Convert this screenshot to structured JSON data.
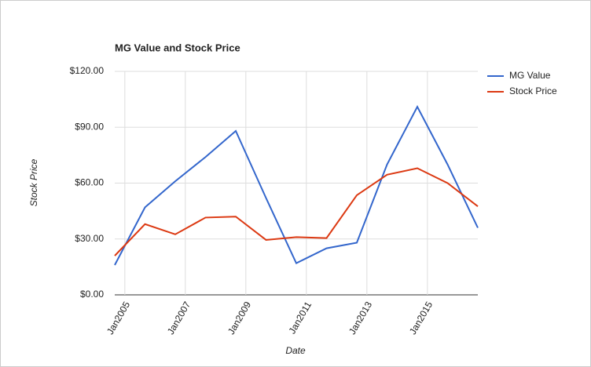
{
  "chart_data": {
    "type": "line",
    "title": "MG Value and Stock Price",
    "x_label": "Date",
    "y_label": "Stock Price",
    "x": [
      "2004-09",
      "2005-09",
      "2006-09",
      "2007-09",
      "2008-09",
      "2009-09",
      "2010-09",
      "2011-09",
      "2012-09",
      "2013-09",
      "2014-09",
      "2015-09",
      "2016-09"
    ],
    "xlim": [
      "2004-09",
      "2016-09"
    ],
    "xticks": [
      {
        "value": "2005-01",
        "label": "Jan2005"
      },
      {
        "value": "2007-01",
        "label": "Jan2007"
      },
      {
        "value": "2009-01",
        "label": "Jan2009"
      },
      {
        "value": "2011-01",
        "label": "Jan2011"
      },
      {
        "value": "2013-01",
        "label": "Jan2013"
      },
      {
        "value": "2015-01",
        "label": "Jan2015"
      }
    ],
    "ylim": [
      0,
      120
    ],
    "yticks": [
      {
        "value": 0,
        "label": "$0.00"
      },
      {
        "value": 30,
        "label": "$30.00"
      },
      {
        "value": 60,
        "label": "$60.00"
      },
      {
        "value": 90,
        "label": "$90.00"
      },
      {
        "value": 120,
        "label": "$120.00"
      }
    ],
    "grid": true,
    "legend": "right",
    "series": [
      {
        "name": "MG Value",
        "color": "#3366cc",
        "values": [
          16,
          47,
          61,
          74,
          88,
          52,
          17,
          25,
          28,
          70,
          101,
          70,
          36
        ]
      },
      {
        "name": "Stock Price",
        "color": "#dc3912",
        "values": [
          21,
          38,
          32.5,
          41.5,
          42,
          29.5,
          31,
          30.5,
          53.5,
          64.5,
          68,
          60,
          47.5
        ]
      }
    ]
  }
}
